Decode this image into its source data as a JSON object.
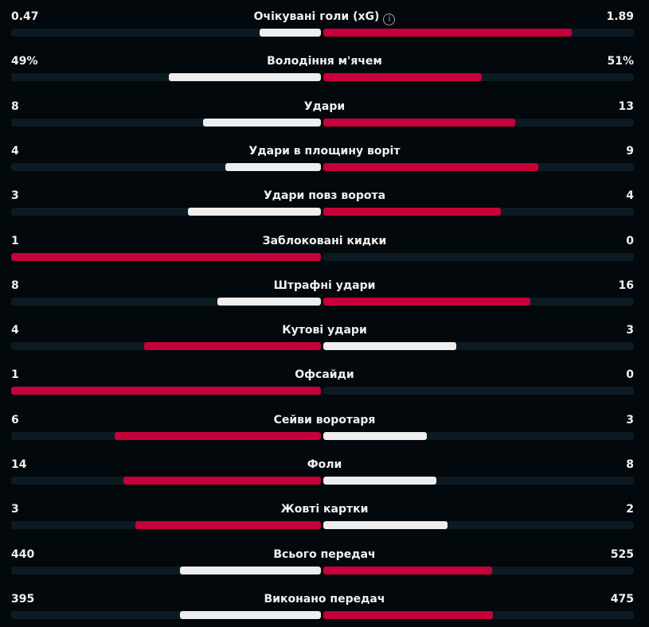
{
  "colors": {
    "background": "#02080c",
    "track": "#0c1b23",
    "leader": "#c8003a",
    "other": "#eeeeee"
  },
  "stats": [
    {
      "label": "Очікувані голи (xG)",
      "home": "0.47",
      "away": "1.89",
      "home_value": 0.47,
      "away_value": 1.89,
      "icon": "info-icon"
    },
    {
      "label": "Володіння м'ячем",
      "home": "49%",
      "away": "51%",
      "home_value": 49,
      "away_value": 51
    },
    {
      "label": "Удари",
      "home": "8",
      "away": "13",
      "home_value": 8,
      "away_value": 13
    },
    {
      "label": "Удари в площину воріт",
      "home": "4",
      "away": "9",
      "home_value": 4,
      "away_value": 9
    },
    {
      "label": "Удари повз ворота",
      "home": "3",
      "away": "4",
      "home_value": 3,
      "away_value": 4
    },
    {
      "label": "Заблоковані кидки",
      "home": "1",
      "away": "0",
      "home_value": 1,
      "away_value": 0
    },
    {
      "label": "Штрафні удари",
      "home": "8",
      "away": "16",
      "home_value": 8,
      "away_value": 16
    },
    {
      "label": "Кутові удари",
      "home": "4",
      "away": "3",
      "home_value": 4,
      "away_value": 3
    },
    {
      "label": "Офсайди",
      "home": "1",
      "away": "0",
      "home_value": 1,
      "away_value": 0
    },
    {
      "label": "Сейви воротаря",
      "home": "6",
      "away": "3",
      "home_value": 6,
      "away_value": 3
    },
    {
      "label": "Фоли",
      "home": "14",
      "away": "8",
      "home_value": 14,
      "away_value": 8
    },
    {
      "label": "Жовті картки",
      "home": "3",
      "away": "2",
      "home_value": 3,
      "away_value": 2
    },
    {
      "label": "Всього передач",
      "home": "440",
      "away": "525",
      "home_value": 440,
      "away_value": 525
    },
    {
      "label": "Виконано передач",
      "home": "395",
      "away": "475",
      "home_value": 395,
      "away_value": 475
    }
  ]
}
